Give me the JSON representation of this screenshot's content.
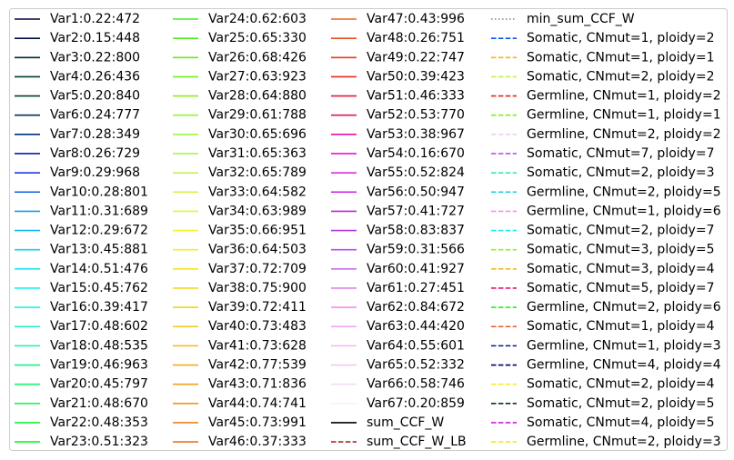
{
  "chart_data": {
    "type": "line",
    "legend_location": "full-figure",
    "legend_columns": 4,
    "series": [
      {
        "name": "Var1:0.22:472",
        "color": "#000045",
        "style": "solid"
      },
      {
        "name": "Var2:0.15:448",
        "color": "#000d3c",
        "style": "solid"
      },
      {
        "name": "Var3:0.22:800",
        "color": "#002c34",
        "style": "solid"
      },
      {
        "name": "Var4:0.26:436",
        "color": "#004228",
        "style": "solid"
      },
      {
        "name": "Var5:0.20:840",
        "color": "#003f2f",
        "style": "solid"
      },
      {
        "name": "Var6:0.24:777",
        "color": "#00345f",
        "style": "solid"
      },
      {
        "name": "Var7:0.28:349",
        "color": "#002c81",
        "style": "solid"
      },
      {
        "name": "Var8:0.26:729",
        "color": "#0f1ba5",
        "style": "solid"
      },
      {
        "name": "Var9:0.29:968",
        "color": "#0b2de0",
        "style": "solid"
      },
      {
        "name": "Var10:0.28:801",
        "color": "#0b62e6",
        "style": "solid"
      },
      {
        "name": "Var11:0.31:689",
        "color": "#0f9dee",
        "style": "solid"
      },
      {
        "name": "Var12:0.29:672",
        "color": "#0fb6ee",
        "style": "solid"
      },
      {
        "name": "Var13:0.45:881",
        "color": "#0fd4f3",
        "style": "solid"
      },
      {
        "name": "Var14:0.51:476",
        "color": "#1ae6f5",
        "style": "solid"
      },
      {
        "name": "Var15:0.45:762",
        "color": "#1df0f0",
        "style": "solid"
      },
      {
        "name": "Var16:0.39:417",
        "color": "#1ff1e0",
        "style": "solid"
      },
      {
        "name": "Var17:0.48:602",
        "color": "#1bf2c4",
        "style": "solid"
      },
      {
        "name": "Var18:0.48:535",
        "color": "#18f2a6",
        "style": "solid"
      },
      {
        "name": "Var19:0.46:963",
        "color": "#18f28a",
        "style": "solid"
      },
      {
        "name": "Var20:0.45:797",
        "color": "#18f46c",
        "style": "solid"
      },
      {
        "name": "Var21:0.48:670",
        "color": "#17f552",
        "style": "solid"
      },
      {
        "name": "Var22:0.48:353",
        "color": "#15f53a",
        "style": "solid"
      },
      {
        "name": "Var23:0.51:323",
        "color": "#14f324",
        "style": "solid"
      },
      {
        "name": "Var24:0.62:603",
        "color": "#3bf21b",
        "style": "solid"
      },
      {
        "name": "Var25:0.65:330",
        "color": "#4eec1b",
        "style": "solid"
      },
      {
        "name": "Var26:0.68:426",
        "color": "#61ee1b",
        "style": "solid"
      },
      {
        "name": "Var27:0.63:923",
        "color": "#74f01b",
        "style": "solid"
      },
      {
        "name": "Var28:0.64:880",
        "color": "#86f21b",
        "style": "solid"
      },
      {
        "name": "Var29:0.61:788",
        "color": "#93f430",
        "style": "solid"
      },
      {
        "name": "Var30:0.65:696",
        "color": "#a2f544",
        "style": "solid"
      },
      {
        "name": "Var31:0.65:363",
        "color": "#aef450",
        "style": "solid"
      },
      {
        "name": "Var32:0.65:789",
        "color": "#bbf344",
        "style": "solid"
      },
      {
        "name": "Var33:0.64:582",
        "color": "#d4f63a",
        "style": "solid"
      },
      {
        "name": "Var34:0.63:989",
        "color": "#e4f730",
        "style": "solid"
      },
      {
        "name": "Var35:0.66:951",
        "color": "#f0f526",
        "style": "solid"
      },
      {
        "name": "Var36:0.64:503",
        "color": "#f5ef1d",
        "style": "solid"
      },
      {
        "name": "Var37:0.72:709",
        "color": "#f6e31d",
        "style": "solid"
      },
      {
        "name": "Var38:0.75:900",
        "color": "#f6d91c",
        "style": "solid"
      },
      {
        "name": "Var39:0.72:411",
        "color": "#f6cf1b",
        "style": "solid"
      },
      {
        "name": "Var40:0.73:483",
        "color": "#f4c51a",
        "style": "solid"
      },
      {
        "name": "Var41:0.73:628",
        "color": "#f4ba1c",
        "style": "solid"
      },
      {
        "name": "Var42:0.77:539",
        "color": "#f2ae1d",
        "style": "solid"
      },
      {
        "name": "Var43:0.71:836",
        "color": "#f0a21d",
        "style": "solid"
      },
      {
        "name": "Var44:0.74:741",
        "color": "#ef941d",
        "style": "solid"
      },
      {
        "name": "Var45:0.73:991",
        "color": "#ee831d",
        "style": "solid"
      },
      {
        "name": "Var46:0.37:333",
        "color": "#ec721d",
        "style": "solid"
      },
      {
        "name": "Var47:0.43:996",
        "color": "#ea631c",
        "style": "solid"
      },
      {
        "name": "Var48:0.26:751",
        "color": "#e8511b",
        "style": "solid"
      },
      {
        "name": "Var49:0.22:747",
        "color": "#e63c1a",
        "style": "solid"
      },
      {
        "name": "Var50:0.39:423",
        "color": "#e42a1f",
        "style": "solid"
      },
      {
        "name": "Var51:0.46:333",
        "color": "#e31a3a",
        "style": "solid"
      },
      {
        "name": "Var52:0.53:770",
        "color": "#e31565",
        "style": "solid"
      },
      {
        "name": "Var53:0.38:967",
        "color": "#e512a6",
        "style": "solid"
      },
      {
        "name": "Var54:0.16:670",
        "color": "#e713d6",
        "style": "solid"
      },
      {
        "name": "Var55:0.52:824",
        "color": "#df1ae8",
        "style": "solid"
      },
      {
        "name": "Var56:0.50:947",
        "color": "#c81fe3",
        "style": "solid"
      },
      {
        "name": "Var57:0.41:727",
        "color": "#b82adf",
        "style": "solid"
      },
      {
        "name": "Var58:0.83:837",
        "color": "#b137df",
        "style": "solid"
      },
      {
        "name": "Var59:0.31:566",
        "color": "#bd4ee6",
        "style": "solid"
      },
      {
        "name": "Var60:0.41:927",
        "color": "#cb6ee6",
        "style": "solid"
      },
      {
        "name": "Var61:0.27:451",
        "color": "#dd82e8",
        "style": "solid"
      },
      {
        "name": "Var62:0.84:672",
        "color": "#ed8fec",
        "style": "solid"
      },
      {
        "name": "Var63:0.44:420",
        "color": "#f2a0ee",
        "style": "solid"
      },
      {
        "name": "Var64:0.55:601",
        "color": "#f2b6f0",
        "style": "solid"
      },
      {
        "name": "Var65:0.52:332",
        "color": "#f2c9f2",
        "style": "solid"
      },
      {
        "name": "Var66:0.58:746",
        "color": "#f5dcf5",
        "style": "solid"
      },
      {
        "name": "Var67:0.20:859",
        "color": "#faeefa",
        "style": "solid"
      },
      {
        "name": "sum_CCF_W",
        "color": "#000000",
        "style": "solid"
      },
      {
        "name": "sum_CCF_W_LB",
        "color": "#a52a2a",
        "style": "dashed"
      },
      {
        "name": "min_sum_CCF_W",
        "color": "#808080",
        "style": "dotted"
      },
      {
        "name": "Somatic, CNmut=1, ploidy=2",
        "color": "#0a57ee",
        "style": "dashed"
      },
      {
        "name": "Somatic, CNmut=1, ploidy=1",
        "color": "#f6b21b",
        "style": "dashed"
      },
      {
        "name": "Somatic, CNmut=2, ploidy=2",
        "color": "#c2f53c",
        "style": "dashed"
      },
      {
        "name": "Germline, CNmut=1, ploidy=2",
        "color": "#e8241a",
        "style": "dashed"
      },
      {
        "name": "Germline, CNmut=1, ploidy=1",
        "color": "#7ef01b",
        "style": "dashed"
      },
      {
        "name": "Germline, CNmut=2, ploidy=2",
        "color": "#f2cdf2",
        "style": "dashed"
      },
      {
        "name": "Somatic, CNmut=7, ploidy=7",
        "color": "#c24ee6",
        "style": "dashed"
      },
      {
        "name": "Somatic, CNmut=2, ploidy=3",
        "color": "#18f2a3",
        "style": "dashed"
      },
      {
        "name": "Germline, CNmut=2, ploidy=5",
        "color": "#0fd0f0",
        "style": "dashed"
      },
      {
        "name": "Germline, CNmut=1, ploidy=6",
        "color": "#ef93ee",
        "style": "dashed"
      },
      {
        "name": "Somatic, CNmut=2, ploidy=7",
        "color": "#1eeee5",
        "style": "dashed"
      },
      {
        "name": "Somatic, CNmut=3, ploidy=5",
        "color": "#92f02c",
        "style": "dashed"
      },
      {
        "name": "Somatic, CNmut=3, ploidy=4",
        "color": "#f6ba1c",
        "style": "dashed"
      },
      {
        "name": "Somatic, CNmut=5, ploidy=7",
        "color": "#e8137a",
        "style": "dashed"
      },
      {
        "name": "Germline, CNmut=2, ploidy=6",
        "color": "#26f21b",
        "style": "dashed"
      },
      {
        "name": "Somatic, CNmut=1, ploidy=4",
        "color": "#ea5a1c",
        "style": "dashed"
      },
      {
        "name": "Germline, CNmut=1, ploidy=3",
        "color": "#001e84",
        "style": "dashed"
      },
      {
        "name": "Germline, CNmut=4, ploidy=4",
        "color": "#00006b",
        "style": "dashed"
      },
      {
        "name": "Somatic, CNmut=2, ploidy=4",
        "color": "#f4ee1d",
        "style": "dashed"
      },
      {
        "name": "Somatic, CNmut=2, ploidy=5",
        "color": "#003a1a",
        "style": "dashed"
      },
      {
        "name": "Somatic, CNmut=4, ploidy=5",
        "color": "#d41ae5",
        "style": "dashed"
      },
      {
        "name": "Germline, CNmut=2, ploidy=3",
        "color": "#f5e61d",
        "style": "dashed"
      }
    ]
  }
}
